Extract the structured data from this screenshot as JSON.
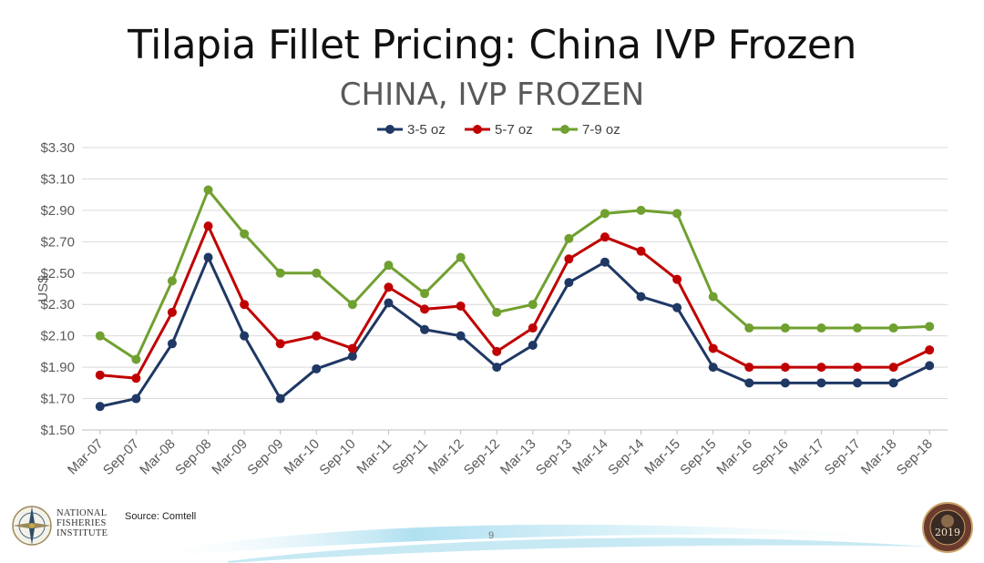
{
  "slide_title": "Tilapia Fillet Pricing: China IVP Frozen",
  "footer": {
    "source": "Source: Comtell",
    "page_number": "9",
    "org_name": [
      "NATIONAL",
      "FISHERIES",
      "INSTITUTE"
    ],
    "conference_year": "2019"
  },
  "colors": {
    "series_3_5": "#1F3864",
    "series_5_7": "#C00000",
    "series_7_9": "#70A030",
    "grid": "#D9D9D9",
    "axis_text": "#595959"
  },
  "chart_data": {
    "type": "line",
    "title": "CHINA, IVP FROZEN",
    "ylabel": "US$",
    "xlabel": "",
    "ylim": [
      1.5,
      3.3
    ],
    "yticks": [
      "$1.50",
      "$1.70",
      "$1.90",
      "$2.10",
      "$2.30",
      "$2.50",
      "$2.70",
      "$2.90",
      "$3.10",
      "$3.30"
    ],
    "grid": true,
    "legend_position": "top-center",
    "categories": [
      "Mar-07",
      "Sep-07",
      "Mar-08",
      "Sep-08",
      "Mar-09",
      "Sep-09",
      "Mar-10",
      "Sep-10",
      "Mar-11",
      "Sep-11",
      "Mar-12",
      "Sep-12",
      "Mar-13",
      "Sep-13",
      "Mar-14",
      "Sep-14",
      "Mar-15",
      "Sep-15",
      "Mar-16",
      "Sep-16",
      "Mar-17",
      "Sep-17",
      "Mar-18",
      "Sep-18"
    ],
    "series": [
      {
        "name": "3-5 oz",
        "color": "#1F3864",
        "values": [
          1.65,
          1.7,
          2.05,
          2.6,
          2.1,
          1.7,
          1.89,
          1.97,
          2.31,
          2.14,
          2.1,
          1.9,
          2.04,
          2.44,
          2.57,
          2.35,
          2.28,
          1.9,
          1.8,
          1.8,
          1.8,
          1.8,
          1.8,
          1.91
        ]
      },
      {
        "name": "5-7 oz",
        "color": "#C00000",
        "values": [
          1.85,
          1.83,
          2.25,
          2.8,
          2.3,
          2.05,
          2.1,
          2.02,
          2.41,
          2.27,
          2.29,
          2.0,
          2.15,
          2.59,
          2.73,
          2.64,
          2.46,
          2.02,
          1.9,
          1.9,
          1.9,
          1.9,
          1.9,
          2.01
        ]
      },
      {
        "name": "7-9 oz",
        "color": "#70A030",
        "values": [
          2.1,
          1.95,
          2.45,
          3.03,
          2.75,
          2.5,
          2.5,
          2.3,
          2.55,
          2.37,
          2.6,
          2.25,
          2.3,
          2.72,
          2.88,
          2.9,
          2.88,
          2.35,
          2.15,
          2.15,
          2.15,
          2.15,
          2.15,
          2.16
        ]
      }
    ]
  }
}
